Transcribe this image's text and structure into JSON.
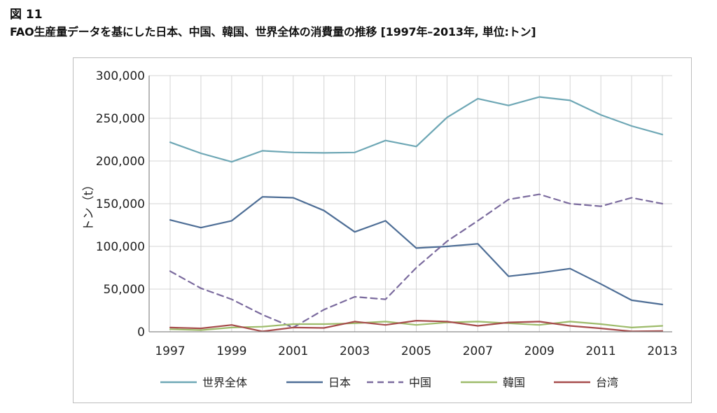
{
  "figure": {
    "label": "図 11",
    "title": "FAO生産量データを基にした日本、中国、韓国、世界全体の消費量の推移 [1997年–2013年, 単位:トン]"
  },
  "chart_data": {
    "type": "line",
    "title": "FAO生産量データを基にした日本、中国、韓国、世界全体の消費量の推移 [1997年–2013年, 単位:トン]",
    "xlabel": "",
    "ylabel": "トン（t）",
    "x": [
      1997,
      1998,
      1999,
      2000,
      2001,
      2002,
      2003,
      2004,
      2005,
      2006,
      2007,
      2008,
      2009,
      2010,
      2011,
      2012,
      2013
    ],
    "x_tick_labels": [
      "1997",
      "1999",
      "2001",
      "2003",
      "2005",
      "2007",
      "2009",
      "2011",
      "2013"
    ],
    "y_tick_labels": [
      "0",
      "50,000",
      "100,000",
      "150,000",
      "200,000",
      "250,000",
      "300,000"
    ],
    "ylim": [
      0,
      300000
    ],
    "grid": "on",
    "legend_position": "bottom",
    "series": [
      {
        "name": "世界全体",
        "color": "#6ea7b5",
        "dash": "solid",
        "values": [
          222000,
          209000,
          199000,
          212000,
          210000,
          209500,
          210000,
          224000,
          217000,
          251000,
          273000,
          265000,
          275000,
          271000,
          254000,
          241000,
          231000
        ]
      },
      {
        "name": "日本",
        "color": "#4e6e96",
        "dash": "solid",
        "values": [
          131000,
          122000,
          130000,
          158000,
          157000,
          142000,
          117000,
          130000,
          98000,
          100000,
          103000,
          65000,
          69000,
          74000,
          56000,
          37000,
          32000
        ]
      },
      {
        "name": "中国",
        "color": "#7b6b9e",
        "dash": "dashed",
        "values": [
          71000,
          51000,
          38000,
          20000,
          5000,
          26000,
          41000,
          38000,
          75000,
          106000,
          130000,
          155000,
          161000,
          150000,
          147000,
          157000,
          150000
        ]
      },
      {
        "name": "韓国",
        "color": "#9dbb6a",
        "dash": "solid",
        "values": [
          3000,
          2000,
          5000,
          6000,
          9000,
          9000,
          10000,
          12000,
          8000,
          11000,
          12000,
          10000,
          8000,
          12000,
          9000,
          5000,
          7000
        ]
      },
      {
        "name": "台湾",
        "color": "#a64b4b",
        "dash": "solid",
        "values": [
          5000,
          4000,
          8000,
          500,
          5000,
          4500,
          12000,
          8000,
          13000,
          12000,
          7000,
          11000,
          12000,
          7000,
          4000,
          500,
          1000
        ]
      }
    ]
  }
}
